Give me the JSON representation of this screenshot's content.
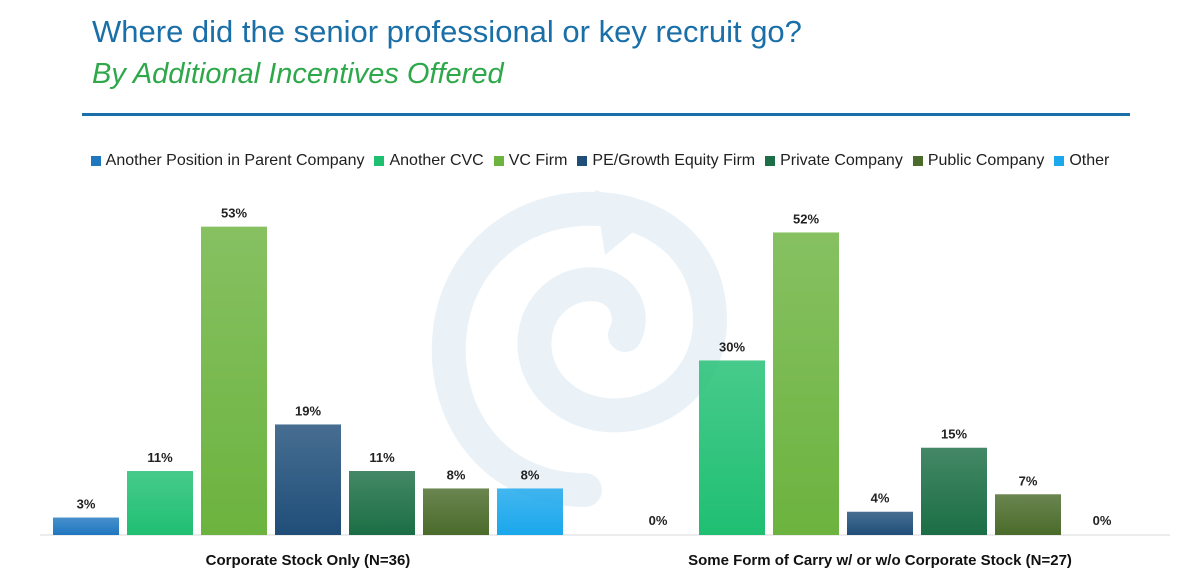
{
  "header": {
    "title": "Where did the senior professional or key recruit go?",
    "subtitle": "By Additional Incentives Offered"
  },
  "colors": {
    "title": "#1a6fa8",
    "subtitle": "#2ea84a",
    "series": [
      "#1f77c0",
      "#1fbf72",
      "#6cb33f",
      "#1f4e79",
      "#1b6e45",
      "#4a6b2a",
      "#1aa7ec"
    ]
  },
  "chart_data": {
    "type": "bar",
    "categories": [
      "Corporate Stock Only (N=36)",
      "Some Form of Carry w/ or w/o Corporate Stock (N=27)"
    ],
    "series": [
      {
        "name": "Another Position in Parent Company",
        "values": [
          3,
          0
        ]
      },
      {
        "name": "Another CVC",
        "values": [
          11,
          30
        ]
      },
      {
        "name": "VC Firm",
        "values": [
          53,
          52
        ]
      },
      {
        "name": "PE/Growth Equity Firm",
        "values": [
          19,
          4
        ]
      },
      {
        "name": "Private Company",
        "values": [
          11,
          15
        ]
      },
      {
        "name": "Public Company",
        "values": [
          8,
          7
        ]
      },
      {
        "name": "Other",
        "values": [
          8,
          0
        ]
      }
    ],
    "value_suffix": "%",
    "ylim": [
      0,
      55
    ],
    "grid": false,
    "legend_position": "top"
  }
}
